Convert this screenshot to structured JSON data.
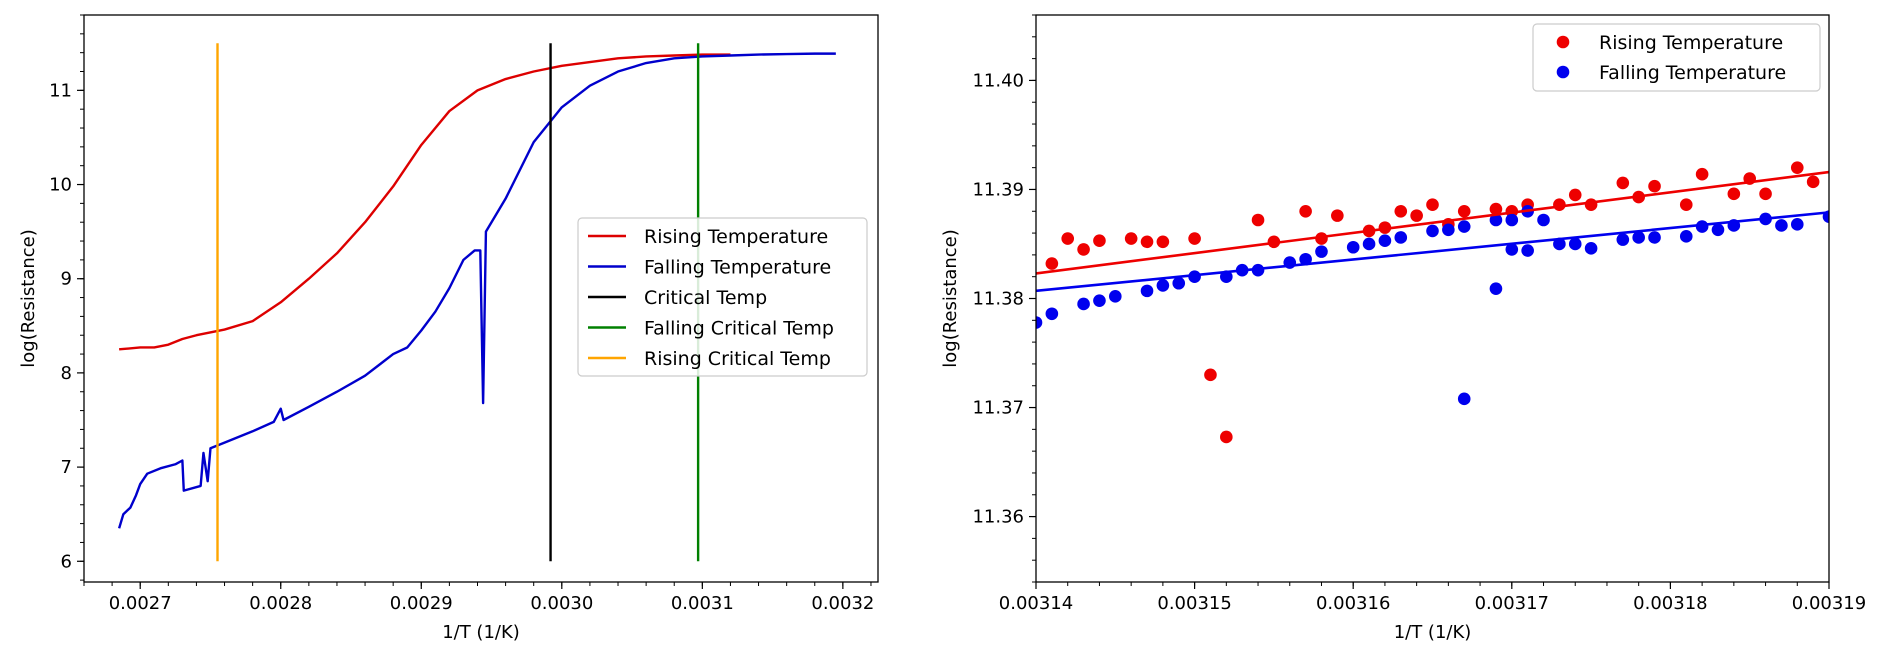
{
  "chart_data": [
    {
      "type": "line",
      "xlabel": "1/T (1/K)",
      "ylabel": "log(Resistance)",
      "xlim": [
        0.00266,
        0.003225
      ],
      "ylim": [
        5.78,
        11.8
      ],
      "xticks": [
        0.0027,
        0.0028,
        0.0029,
        0.003,
        0.0031,
        0.0032
      ],
      "xtick_labels": [
        "0.0027",
        "0.0028",
        "0.0029",
        "0.0030",
        "0.0031",
        "0.0032"
      ],
      "yticks": [
        6,
        7,
        8,
        9,
        10,
        11
      ],
      "ytick_labels": [
        "6",
        "7",
        "8",
        "9",
        "10",
        "11"
      ],
      "grid": false,
      "legend_position": "center-right",
      "series": [
        {
          "name": "Rising Temperature",
          "color": "#dd0000",
          "points": [
            [
              0.002685,
              8.25
            ],
            [
              0.0027,
              8.27
            ],
            [
              0.00271,
              8.27
            ],
            [
              0.00272,
              8.3
            ],
            [
              0.00273,
              8.36
            ],
            [
              0.00274,
              8.4
            ],
            [
              0.00276,
              8.46
            ],
            [
              0.00278,
              8.55
            ],
            [
              0.0028,
              8.75
            ],
            [
              0.00282,
              9.0
            ],
            [
              0.00284,
              9.27
            ],
            [
              0.00286,
              9.6
            ],
            [
              0.00288,
              9.98
            ],
            [
              0.0029,
              10.42
            ],
            [
              0.00292,
              10.78
            ],
            [
              0.00294,
              11.0
            ],
            [
              0.00296,
              11.12
            ],
            [
              0.00298,
              11.2
            ],
            [
              0.003,
              11.26
            ],
            [
              0.00302,
              11.3
            ],
            [
              0.00304,
              11.34
            ],
            [
              0.00306,
              11.36
            ],
            [
              0.00308,
              11.37
            ],
            [
              0.0031,
              11.38
            ],
            [
              0.00312,
              11.38
            ]
          ]
        },
        {
          "name": "Falling Temperature",
          "color": "#0000cc",
          "points": [
            [
              0.002685,
              6.35
            ],
            [
              0.002688,
              6.5
            ],
            [
              0.002693,
              6.57
            ],
            [
              0.002697,
              6.7
            ],
            [
              0.0027,
              6.82
            ],
            [
              0.002705,
              6.93
            ],
            [
              0.002715,
              6.99
            ],
            [
              0.002725,
              7.03
            ],
            [
              0.00273,
              7.07
            ],
            [
              0.002731,
              6.75
            ],
            [
              0.002743,
              6.8
            ],
            [
              0.002745,
              7.15
            ],
            [
              0.002748,
              6.85
            ],
            [
              0.00275,
              7.2
            ],
            [
              0.00276,
              7.26
            ],
            [
              0.00278,
              7.38
            ],
            [
              0.002795,
              7.48
            ],
            [
              0.0028,
              7.62
            ],
            [
              0.002802,
              7.5
            ],
            [
              0.00282,
              7.64
            ],
            [
              0.00284,
              7.8
            ],
            [
              0.00286,
              7.97
            ],
            [
              0.00288,
              8.2
            ],
            [
              0.00289,
              8.27
            ],
            [
              0.0029,
              8.45
            ],
            [
              0.00291,
              8.65
            ],
            [
              0.00292,
              8.9
            ],
            [
              0.00293,
              9.2
            ],
            [
              0.002938,
              9.3
            ],
            [
              0.002942,
              9.3
            ],
            [
              0.002944,
              7.68
            ],
            [
              0.002946,
              9.5
            ],
            [
              0.00296,
              9.85
            ],
            [
              0.00298,
              10.45
            ],
            [
              0.003,
              10.82
            ],
            [
              0.00302,
              11.05
            ],
            [
              0.00304,
              11.2
            ],
            [
              0.00306,
              11.29
            ],
            [
              0.00308,
              11.34
            ],
            [
              0.0031,
              11.36
            ],
            [
              0.00312,
              11.37
            ],
            [
              0.00314,
              11.38
            ],
            [
              0.00316,
              11.385
            ],
            [
              0.00318,
              11.39
            ],
            [
              0.003195,
              11.39
            ]
          ]
        },
        {
          "name": "Critical Temp",
          "color": "#000000",
          "points": [
            [
              0.002992,
              6.0
            ],
            [
              0.002992,
              11.5
            ]
          ]
        },
        {
          "name": "Falling Critical Temp",
          "color": "#008000",
          "points": [
            [
              0.003097,
              6.0
            ],
            [
              0.003097,
              11.5
            ]
          ]
        },
        {
          "name": "Rising Critical Temp",
          "color": "#ffa500",
          "points": [
            [
              0.002755,
              6.0
            ],
            [
              0.002755,
              11.5
            ]
          ]
        }
      ]
    },
    {
      "type": "scatter",
      "xlabel": "1/T (1/K)",
      "ylabel": "log(Resistance)",
      "xlim": [
        0.00314,
        0.00319
      ],
      "ylim": [
        11.354,
        11.406
      ],
      "xticks": [
        0.00314,
        0.00315,
        0.00316,
        0.00317,
        0.00318,
        0.00319
      ],
      "xtick_labels": [
        "0.00314",
        "0.00315",
        "0.00316",
        "0.00317",
        "0.00318",
        "0.00319"
      ],
      "yticks": [
        11.36,
        11.37,
        11.38,
        11.39,
        11.4
      ],
      "ytick_labels": [
        "11.36",
        "11.37",
        "11.38",
        "11.39",
        "11.40"
      ],
      "grid": false,
      "legend_position": "top-right",
      "series": [
        {
          "name": "Rising Temperature",
          "color": "#ee0000",
          "points": [
            [
              0.003141,
              11.3832
            ],
            [
              0.003142,
              11.3855
            ],
            [
              0.003143,
              11.3845
            ],
            [
              0.003144,
              11.3853
            ],
            [
              0.003146,
              11.3855
            ],
            [
              0.003147,
              11.3852
            ],
            [
              0.003148,
              11.3852
            ],
            [
              0.00315,
              11.3855
            ],
            [
              0.003151,
              11.373
            ],
            [
              0.003152,
              11.3673
            ],
            [
              0.003154,
              11.3872
            ],
            [
              0.003155,
              11.3852
            ],
            [
              0.003157,
              11.388
            ],
            [
              0.003158,
              11.3855
            ],
            [
              0.003159,
              11.3876
            ],
            [
              0.003161,
              11.3862
            ],
            [
              0.003162,
              11.3865
            ],
            [
              0.003163,
              11.388
            ],
            [
              0.003164,
              11.3876
            ],
            [
              0.003165,
              11.3886
            ],
            [
              0.003166,
              11.3868
            ],
            [
              0.003167,
              11.388
            ],
            [
              0.003169,
              11.3882
            ],
            [
              0.00317,
              11.388
            ],
            [
              0.003171,
              11.3886
            ],
            [
              0.003173,
              11.3886
            ],
            [
              0.003174,
              11.3895
            ],
            [
              0.003175,
              11.3886
            ],
            [
              0.003177,
              11.3906
            ],
            [
              0.003178,
              11.3893
            ],
            [
              0.003179,
              11.3903
            ],
            [
              0.003181,
              11.3886
            ],
            [
              0.003182,
              11.3914
            ],
            [
              0.003184,
              11.3896
            ],
            [
              0.003185,
              11.391
            ],
            [
              0.003186,
              11.3896
            ],
            [
              0.003188,
              11.392
            ],
            [
              0.003189,
              11.3907
            ]
          ]
        },
        {
          "name": "Falling Temperature",
          "color": "#0000ee",
          "points": [
            [
              0.00314,
              11.3778
            ],
            [
              0.003141,
              11.3786
            ],
            [
              0.003143,
              11.3795
            ],
            [
              0.003144,
              11.3798
            ],
            [
              0.003145,
              11.3802
            ],
            [
              0.003147,
              11.3807
            ],
            [
              0.003148,
              11.3812
            ],
            [
              0.003149,
              11.3814
            ],
            [
              0.00315,
              11.382
            ],
            [
              0.003152,
              11.382
            ],
            [
              0.003153,
              11.3826
            ],
            [
              0.003154,
              11.3826
            ],
            [
              0.003156,
              11.3833
            ],
            [
              0.003157,
              11.3836
            ],
            [
              0.003158,
              11.3843
            ],
            [
              0.00316,
              11.3847
            ],
            [
              0.003161,
              11.385
            ],
            [
              0.003162,
              11.3853
            ],
            [
              0.003163,
              11.3856
            ],
            [
              0.003165,
              11.3862
            ],
            [
              0.003166,
              11.3863
            ],
            [
              0.003167,
              11.3866
            ],
            [
              0.003169,
              11.3872
            ],
            [
              0.00317,
              11.3872
            ],
            [
              0.003171,
              11.388
            ],
            [
              0.003172,
              11.3872
            ],
            [
              0.003167,
              11.3708
            ],
            [
              0.003169,
              11.3809
            ],
            [
              0.00317,
              11.3845
            ],
            [
              0.003171,
              11.3844
            ],
            [
              0.003173,
              11.385
            ],
            [
              0.003174,
              11.385
            ],
            [
              0.003175,
              11.3846
            ],
            [
              0.003177,
              11.3854
            ],
            [
              0.003178,
              11.3856
            ],
            [
              0.003179,
              11.3856
            ],
            [
              0.003181,
              11.3857
            ],
            [
              0.003182,
              11.3866
            ],
            [
              0.003183,
              11.3863
            ],
            [
              0.003184,
              11.3867
            ],
            [
              0.003186,
              11.3873
            ],
            [
              0.003187,
              11.3867
            ],
            [
              0.003188,
              11.3868
            ],
            [
              0.00319,
              11.3875
            ],
            [
              0.003191,
              11.3873
            ],
            [
              0.003192,
              11.3875
            ],
            [
              0.003193,
              11.3882
            ]
          ]
        }
      ],
      "fit_lines": [
        {
          "series": "Rising Temperature",
          "color": "#ee0000",
          "points": [
            [
              0.00314,
              11.3823
            ],
            [
              0.00319,
              11.3916
            ]
          ]
        },
        {
          "series": "Falling Temperature",
          "color": "#0000ee",
          "points": [
            [
              0.00314,
              11.3807
            ],
            [
              0.00319,
              11.3879
            ]
          ]
        }
      ]
    }
  ]
}
